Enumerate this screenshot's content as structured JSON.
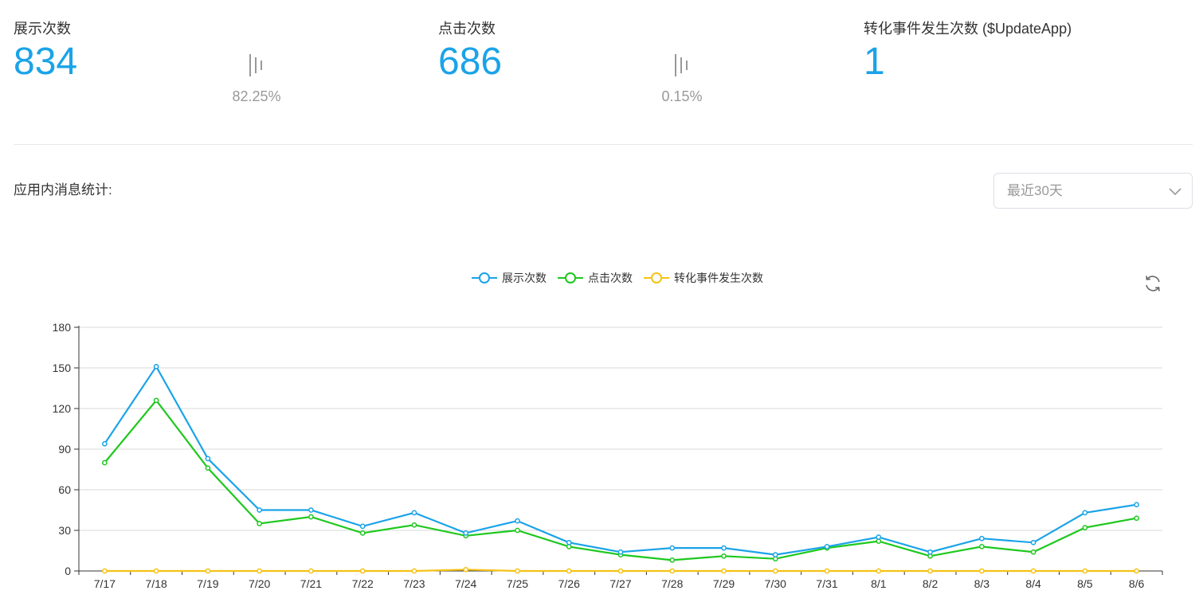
{
  "stats": [
    {
      "label": "展示次数",
      "value": "834"
    },
    {
      "label": "点击次数",
      "value": "686"
    },
    {
      "label": "转化事件发生次数 ($UpdateApp)",
      "value": "1"
    }
  ],
  "rates": [
    "82.25%",
    "0.15%"
  ],
  "section_title": "应用内消息统计:",
  "range_select": {
    "value": "最近30天"
  },
  "colors": {
    "blue": "#1aa3e8",
    "green": "#1ec81e",
    "yellow": "#f5c216"
  },
  "chart_data": {
    "type": "line",
    "categories": [
      "7/17",
      "7/18",
      "7/19",
      "7/20",
      "7/21",
      "7/22",
      "7/23",
      "7/24",
      "7/25",
      "7/26",
      "7/27",
      "7/28",
      "7/29",
      "7/30",
      "7/31",
      "8/1",
      "8/2",
      "8/3",
      "8/4",
      "8/5",
      "8/6"
    ],
    "series": [
      {
        "name": "展示次数",
        "color": "#1aa3e8",
        "values": [
          94,
          151,
          83,
          45,
          45,
          33,
          43,
          28,
          37,
          21,
          14,
          17,
          17,
          12,
          18,
          25,
          14,
          24,
          21,
          43,
          49
        ]
      },
      {
        "name": "点击次数",
        "color": "#1ec81e",
        "values": [
          80,
          126,
          76,
          35,
          40,
          28,
          34,
          26,
          30,
          18,
          12,
          8,
          11,
          9,
          17,
          22,
          11,
          18,
          14,
          32,
          39
        ]
      },
      {
        "name": "转化事件发生次数",
        "color": "#f5c216",
        "values": [
          0,
          0,
          0,
          0,
          0,
          0,
          0,
          1,
          0,
          0,
          0,
          0,
          0,
          0,
          0,
          0,
          0,
          0,
          0,
          0,
          0
        ]
      }
    ],
    "y_ticks": [
      "0",
      "30",
      "60",
      "90",
      "120",
      "150",
      "180"
    ],
    "ylim": [
      0,
      180
    ],
    "legend": "top-center",
    "grid": true
  }
}
